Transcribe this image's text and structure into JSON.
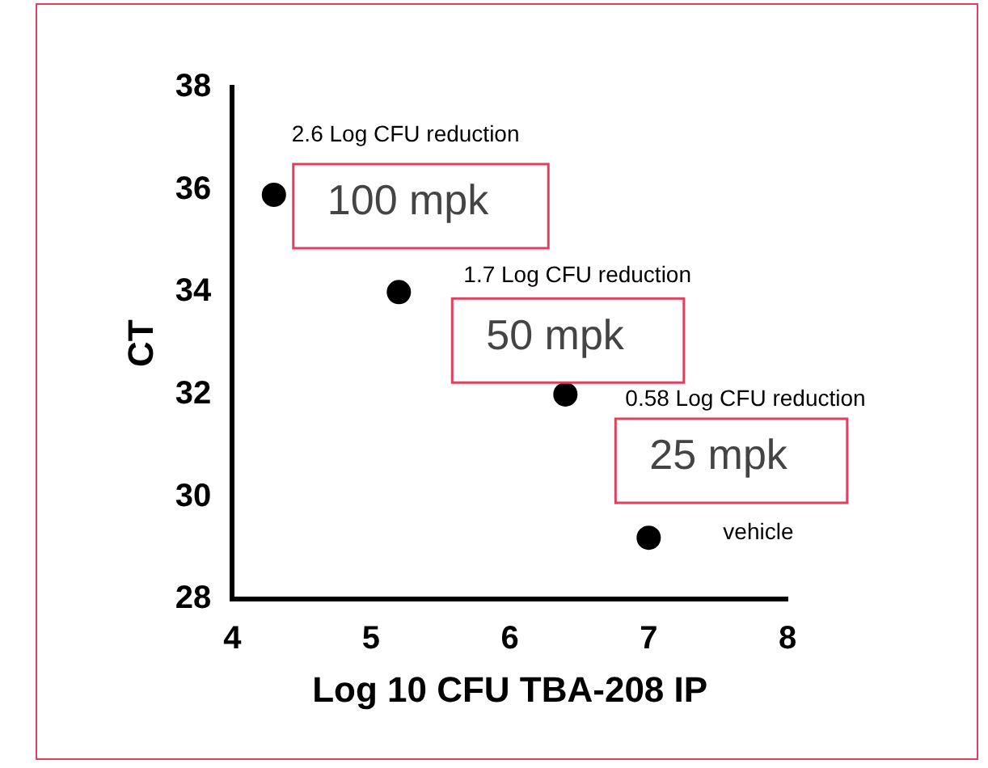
{
  "chart_data": {
    "type": "scatter",
    "xlabel": "Log 10 CFU TBA-208 IP",
    "ylabel": "CT",
    "x": [
      4.3,
      5.2,
      6.4,
      7.0
    ],
    "values": [
      35.9,
      34.0,
      32.0,
      29.2
    ],
    "color": "#000000",
    "marker": "circle",
    "xlim": [
      4,
      8
    ],
    "xticks": [
      4,
      5,
      6,
      7,
      8
    ],
    "ylim": [
      28,
      38
    ],
    "yticks": [
      28,
      30,
      32,
      34,
      36,
      38
    ],
    "grid": false,
    "legend": false,
    "annotations": [
      "2.6 Log CFU reduction",
      "100 mpk",
      "1.7 Log CFU reduction",
      "50 mpk",
      "0.58 Log CFU reduction",
      "25 mpk",
      "vehicle"
    ]
  }
}
